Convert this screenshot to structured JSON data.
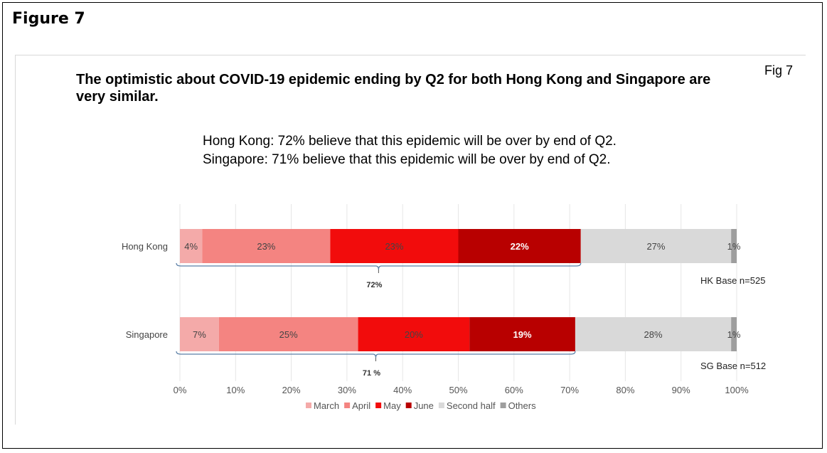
{
  "figure_label": "Figure 7",
  "fig_tag": "Fig 7",
  "title": "The optimistic about COVID-19 epidemic ending by Q2 for both Hong Kong and Singapore are very similar.",
  "subtitle": {
    "line1": "Hong Kong: 72% believe that this epidemic will be over by end of Q2.",
    "line2": "Singapore:  71% believe that this epidemic will be over by end of Q2."
  },
  "colors": {
    "March": "#f4aaa9",
    "April": "#f48481",
    "May": "#f20c0c",
    "June": "#b80000",
    "Second half": "#d9d9d9",
    "Others": "#9e9e9e"
  },
  "chart_data": {
    "type": "bar",
    "orientation": "horizontal",
    "stacked": true,
    "categories": [
      "Hong Kong",
      "Singapore"
    ],
    "series": [
      {
        "name": "March",
        "values": [
          4,
          7
        ],
        "labels": [
          "4%",
          "7%"
        ]
      },
      {
        "name": "April",
        "values": [
          23,
          25
        ],
        "labels": [
          "23%",
          "25%"
        ]
      },
      {
        "name": "May",
        "values": [
          23,
          20
        ],
        "labels": [
          "23%",
          "20%"
        ]
      },
      {
        "name": "June",
        "values": [
          22,
          19
        ],
        "labels": [
          "22%",
          "19%"
        ]
      },
      {
        "name": "Second half",
        "values": [
          27,
          28
        ],
        "labels": [
          "27%",
          "28%"
        ]
      },
      {
        "name": "Others",
        "values": [
          1,
          1
        ],
        "labels": [
          "1%",
          "1%"
        ]
      }
    ],
    "xlim": [
      0,
      100
    ],
    "xticks": [
      "0%",
      "10%",
      "20%",
      "30%",
      "40%",
      "50%",
      "60%",
      "70%",
      "80%",
      "90%",
      "100%"
    ],
    "grid": true,
    "legend": "bottom",
    "brackets": [
      {
        "category": "Hong Kong",
        "end": 72,
        "label": "72%"
      },
      {
        "category": "Singapore",
        "end": 71,
        "label": "71 %"
      }
    ],
    "base_notes": [
      "HK Base n=525",
      "SG Base n=512"
    ]
  }
}
